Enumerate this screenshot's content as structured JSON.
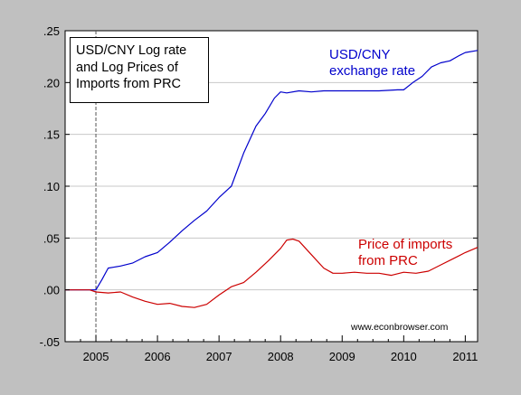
{
  "chart_data": {
    "type": "line",
    "title_box": {
      "lines": [
        "USD/CNY Log rate",
        "and Log Prices of",
        "Imports from PRC"
      ]
    },
    "xlim": [
      2004.5,
      2011.2
    ],
    "ylim": [
      -0.05,
      0.25
    ],
    "y_ticks": [
      {
        "value": 0.25,
        "label": ".25"
      },
      {
        "value": 0.2,
        "label": ".20"
      },
      {
        "value": 0.15,
        "label": ".15"
      },
      {
        "value": 0.1,
        "label": ".10"
      },
      {
        "value": 0.05,
        "label": ".05"
      },
      {
        "value": 0.0,
        "label": ".00"
      },
      {
        "value": -0.05,
        "label": "-.05"
      }
    ],
    "x_ticks": [
      {
        "label": "2005",
        "pos": 2005.0
      },
      {
        "label": "2006",
        "pos": 2006.0
      },
      {
        "label": "2007",
        "pos": 2007.0
      },
      {
        "label": "2008",
        "pos": 2008.0
      },
      {
        "label": "2009",
        "pos": 2009.0
      },
      {
        "label": "2010",
        "pos": 2010.0
      },
      {
        "label": "2011",
        "pos": 2011.0
      }
    ],
    "grid": true,
    "vline": {
      "x": 2005.0
    },
    "series": [
      {
        "annotation_lines": [
          "USD/CNY",
          "exchange rate"
        ],
        "color": "#0000cc",
        "x": [
          2004.5,
          2004.7,
          2004.9,
          2005.0,
          2005.1,
          2005.2,
          2005.4,
          2005.6,
          2005.8,
          2006.0,
          2006.2,
          2006.4,
          2006.6,
          2006.8,
          2007.0,
          2007.2,
          2007.4,
          2007.6,
          2007.75,
          2007.9,
          2008.0,
          2008.1,
          2008.3,
          2008.5,
          2008.7,
          2009.0,
          2009.3,
          2009.6,
          2009.9,
          2010.0,
          2010.15,
          2010.3,
          2010.45,
          2010.6,
          2010.75,
          2010.9,
          2011.0,
          2011.2
        ],
        "y": [
          0.0,
          0.0,
          0.0,
          0.0,
          0.01,
          0.021,
          0.023,
          0.026,
          0.032,
          0.036,
          0.046,
          0.057,
          0.067,
          0.076,
          0.089,
          0.1,
          0.132,
          0.158,
          0.17,
          0.185,
          0.191,
          0.19,
          0.192,
          0.191,
          0.192,
          0.192,
          0.192,
          0.192,
          0.193,
          0.193,
          0.2,
          0.206,
          0.215,
          0.219,
          0.221,
          0.226,
          0.229,
          0.231
        ]
      },
      {
        "annotation_lines": [
          "Price of imports",
          "from PRC"
        ],
        "color": "#cc0000",
        "x": [
          2004.5,
          2004.7,
          2004.9,
          2005.0,
          2005.2,
          2005.4,
          2005.6,
          2005.8,
          2006.0,
          2006.2,
          2006.4,
          2006.6,
          2006.8,
          2007.0,
          2007.2,
          2007.4,
          2007.6,
          2007.8,
          2008.0,
          2008.1,
          2008.2,
          2008.3,
          2008.5,
          2008.7,
          2008.85,
          2009.0,
          2009.2,
          2009.4,
          2009.6,
          2009.8,
          2010.0,
          2010.2,
          2010.4,
          2010.6,
          2010.8,
          2011.0,
          2011.2
        ],
        "y": [
          0.0,
          0.0,
          0.0,
          -0.002,
          -0.003,
          -0.002,
          -0.007,
          -0.011,
          -0.014,
          -0.013,
          -0.016,
          -0.017,
          -0.014,
          -0.005,
          0.003,
          0.007,
          0.017,
          0.028,
          0.04,
          0.048,
          0.049,
          0.047,
          0.034,
          0.021,
          0.016,
          0.016,
          0.017,
          0.016,
          0.016,
          0.014,
          0.017,
          0.016,
          0.018,
          0.024,
          0.03,
          0.036,
          0.041
        ]
      }
    ],
    "credit": "www.econbrowser.com"
  }
}
